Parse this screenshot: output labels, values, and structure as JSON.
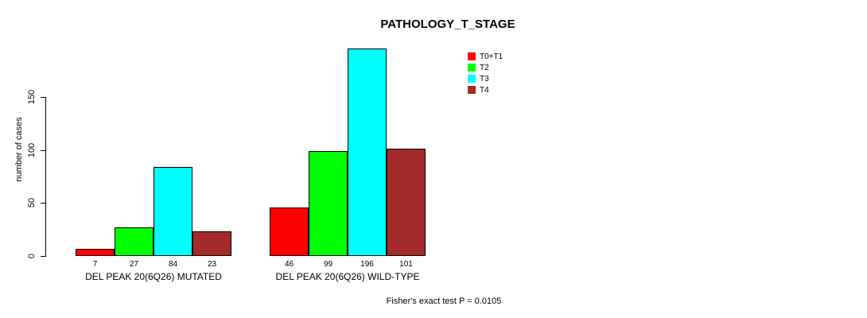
{
  "chart_data": {
    "type": "bar",
    "title": "PATHOLOGY_T_STAGE",
    "ylabel": "number of cases",
    "xlabel": "",
    "ylim": [
      0,
      150
    ],
    "yticks": [
      0,
      50,
      100,
      150
    ],
    "grid": false,
    "legend_position": "top-right",
    "categories": [
      "DEL PEAK 20(6Q26) MUTATED",
      "DEL PEAK 20(6Q26) WILD-TYPE"
    ],
    "series": [
      {
        "name": "T0+T1",
        "color": "#ff0000",
        "values": [
          7,
          46
        ]
      },
      {
        "name": "T2",
        "color": "#00ff00",
        "values": [
          27,
          99
        ]
      },
      {
        "name": "T3",
        "color": "#00ffff",
        "values": [
          84,
          196
        ]
      },
      {
        "name": "T4",
        "color": "#a52a2a",
        "values": [
          23,
          101
        ]
      }
    ],
    "bar_value_labels_shown": true,
    "annotation": "Fisher's exact test P = 0.0105"
  },
  "colors": {
    "background": "#ffffff",
    "axis": "#000000",
    "text": "#000000"
  }
}
